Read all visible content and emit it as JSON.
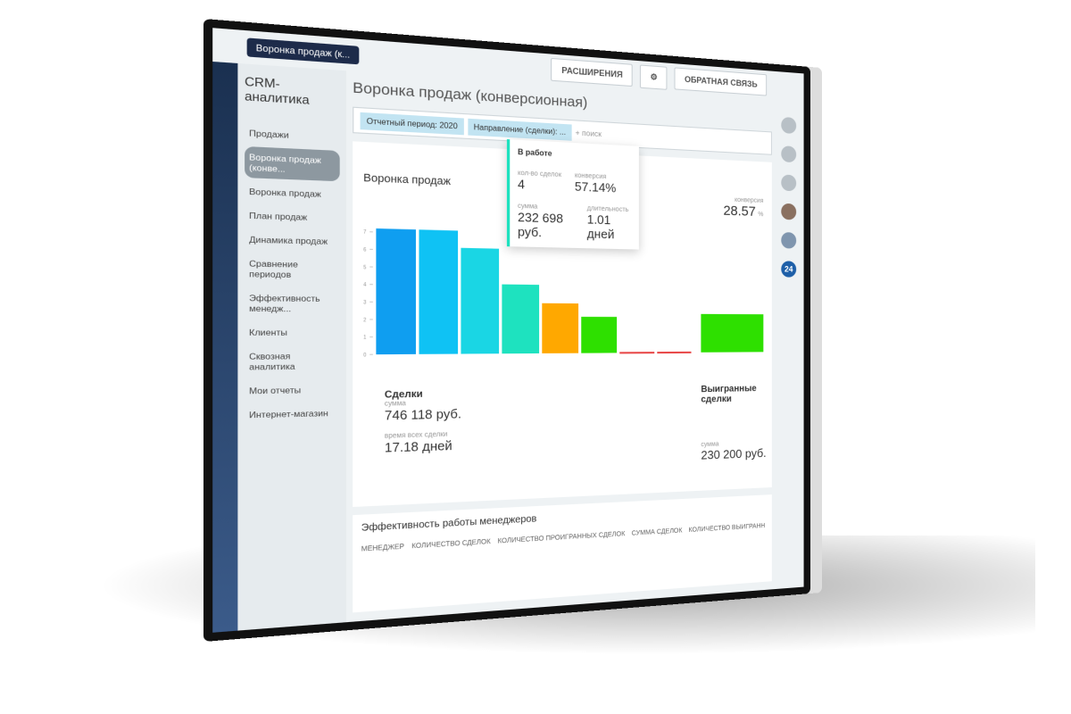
{
  "browser": {
    "tab": "Воронка продаж (к...",
    "extensions": "РАСШИРЕНИЯ",
    "feedback": "ОБРАТНАЯ СВЯЗЬ",
    "badge": "24"
  },
  "sidebar": {
    "title": "CRM-аналитика",
    "items": [
      "Продажи",
      "Воронка продаж (конве...",
      "Воронка продаж",
      "План продаж",
      "Динамика продаж",
      "Сравнение периодов",
      "Эффективность менедж...",
      "Клиенты",
      "Сквозная аналитика",
      "Мои отчеты",
      "Интернет-магазин"
    ]
  },
  "page": {
    "title": "Воронка продаж (конверсионная)",
    "filters": [
      "Отчетный период: 2020",
      "Направление (сделки): ..."
    ],
    "search": "+ поиск"
  },
  "funnel": {
    "title": "Воронка продаж",
    "conversion_label": "конверсия",
    "conversion": "28.57",
    "conversion_unit": "%",
    "tooltip": {
      "title": "В работе",
      "count_label": "кол-во сделок",
      "count": "4",
      "conv_label": "конверсия",
      "conv": "57.14%",
      "sum_label": "сумма",
      "sum": "232 698 руб.",
      "dur_label": "длительность",
      "dur": "1.01 дней"
    },
    "deals": {
      "title": "Сделки",
      "sum_label": "сумма",
      "sum": "746 118 руб.",
      "time_label": "время всех сделки",
      "time": "17.18 дней"
    },
    "won": {
      "title": "Выигранные сделки",
      "sum_label": "сумма",
      "sum": "230 200 руб."
    }
  },
  "chart_data": {
    "type": "bar",
    "values": [
      7.2,
      7.2,
      6.2,
      4.1,
      3,
      2.2,
      0,
      0
    ],
    "colors": [
      "#0f9ef0",
      "#0fc2f4",
      "#1ad6e4",
      "#1ee2bf",
      "#ffa800",
      "#2ee000",
      "#e84a4a",
      "#e84a4a"
    ],
    "won_value": 2.4,
    "won_color": "#2ee000",
    "ylim": [
      0,
      7.5
    ],
    "yticks": [
      0,
      1,
      2,
      3,
      4,
      5,
      6,
      7
    ]
  },
  "managers": {
    "title": "Эффективность работы менеджеров",
    "headers": [
      "МЕНЕДЖЕР",
      "КОЛИЧЕСТВО СДЕЛОК",
      "КОЛИЧЕСТВО ПРОИГРАННЫХ СДЕЛОК",
      "СУММА СДЕЛОК",
      "КОЛИЧЕСТВО ВЫИГРАНН"
    ]
  }
}
